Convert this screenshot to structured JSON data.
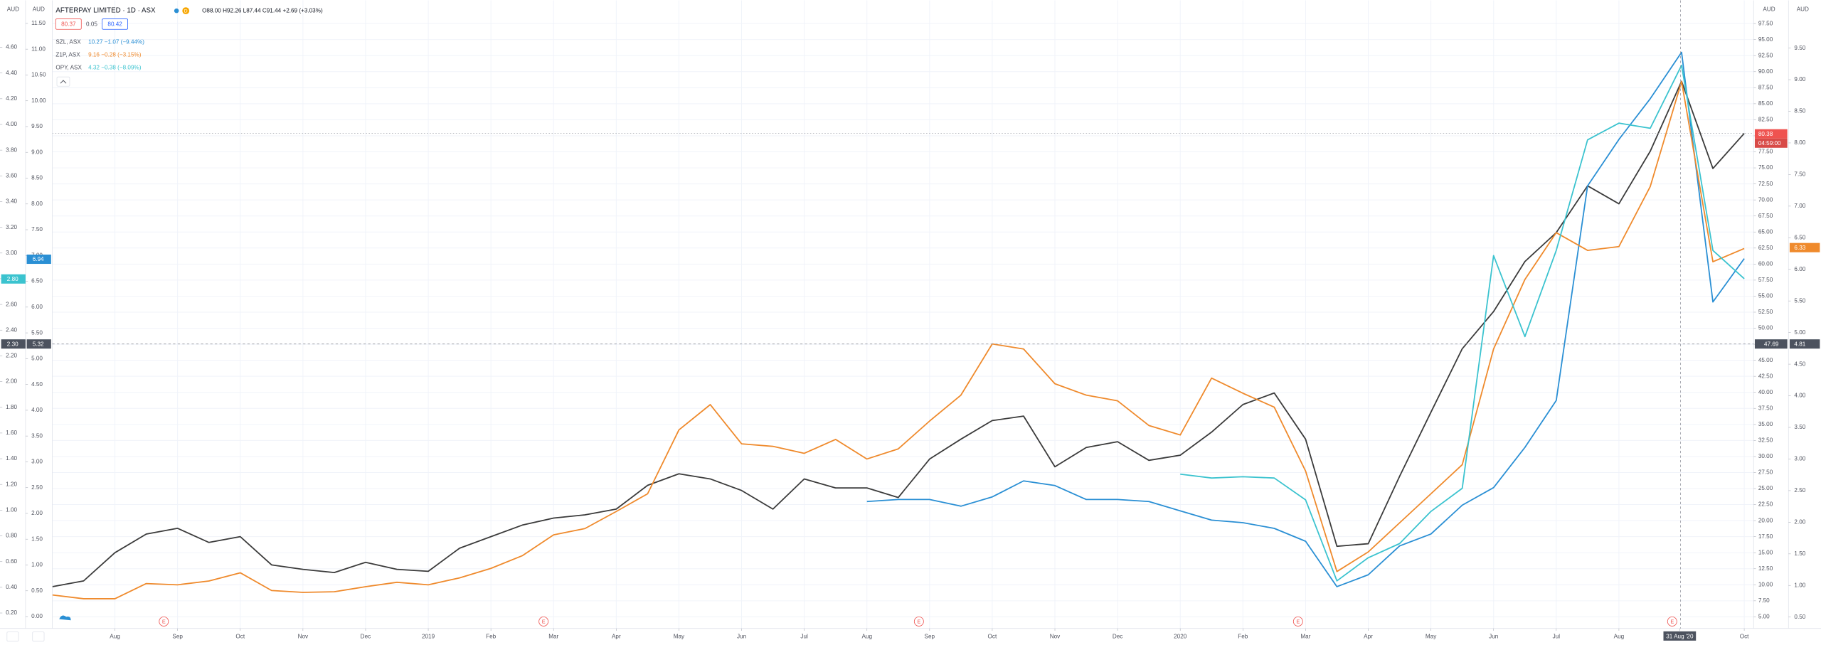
{
  "chart_data": {
    "type": "line",
    "title": "AFTERPAY LIMITED · 1D · ASX",
    "subtitle": "O88.00 H92.26 L87.44 C91.44 +2.69 (+3.03%)",
    "grid": true,
    "xlim": [
      -1,
      26.15
    ],
    "xticks": [
      {
        "value": 0,
        "label": "Aug"
      },
      {
        "value": 1,
        "label": "Sep"
      },
      {
        "value": 2,
        "label": "Oct"
      },
      {
        "value": 3,
        "label": "Nov"
      },
      {
        "value": 4,
        "label": "Dec"
      },
      {
        "value": 5,
        "label": "2019"
      },
      {
        "value": 6,
        "label": "Feb"
      },
      {
        "value": 7,
        "label": "Mar"
      },
      {
        "value": 8,
        "label": "Apr"
      },
      {
        "value": 9,
        "label": "May"
      },
      {
        "value": 10,
        "label": "Jun"
      },
      {
        "value": 11,
        "label": "Jul"
      },
      {
        "value": 12,
        "label": "Aug"
      },
      {
        "value": 13,
        "label": "Sep"
      },
      {
        "value": 14,
        "label": "Oct"
      },
      {
        "value": 15,
        "label": "Nov"
      },
      {
        "value": 16,
        "label": "Dec"
      },
      {
        "value": 17,
        "label": "2020"
      },
      {
        "value": 18,
        "label": "Feb"
      },
      {
        "value": 19,
        "label": "Mar"
      },
      {
        "value": 20,
        "label": "Apr"
      },
      {
        "value": 21,
        "label": "May"
      },
      {
        "value": 22,
        "label": "Jun"
      },
      {
        "value": 23,
        "label": "Jul"
      },
      {
        "value": 24,
        "label": "Aug"
      },
      {
        "value": 24.97,
        "label": "31 Aug '20"
      },
      {
        "value": 26,
        "label": "Oct"
      }
    ],
    "ylim": [
      3.19,
      98.41
    ],
    "yticks": [
      {
        "value": 5,
        "label": "5.00"
      },
      {
        "value": 7.5,
        "label": "7.50"
      },
      {
        "value": 10,
        "label": "10.00"
      },
      {
        "value": 12.5,
        "label": "12.50"
      },
      {
        "value": 15,
        "label": "15.00"
      },
      {
        "value": 17.5,
        "label": "17.50"
      },
      {
        "value": 20,
        "label": "20.00"
      },
      {
        "value": 22.5,
        "label": "22.50"
      },
      {
        "value": 25,
        "label": "25.00"
      },
      {
        "value": 27.5,
        "label": "27.50"
      },
      {
        "value": 30,
        "label": "30.00"
      },
      {
        "value": 32.5,
        "label": "32.50"
      },
      {
        "value": 35,
        "label": "35.00"
      },
      {
        "value": 37.5,
        "label": "37.50"
      },
      {
        "value": 40,
        "label": "40.00"
      },
      {
        "value": 42.5,
        "label": "42.50"
      },
      {
        "value": 45,
        "label": "45.00"
      },
      {
        "value": 47.5,
        "label": "47.50"
      },
      {
        "value": 50,
        "label": "50.00"
      },
      {
        "value": 52.5,
        "label": "52.50"
      },
      {
        "value": 55,
        "label": "55.00"
      },
      {
        "value": 57.5,
        "label": "57.50"
      },
      {
        "value": 60,
        "label": "60.00"
      },
      {
        "value": 62.5,
        "label": "62.50"
      },
      {
        "value": 65,
        "label": "65.00"
      },
      {
        "value": 67.5,
        "label": "67.50"
      },
      {
        "value": 70,
        "label": "70.00"
      },
      {
        "value": 72.5,
        "label": "72.50"
      },
      {
        "value": 75,
        "label": "75.00"
      },
      {
        "value": 77.5,
        "label": "77.50"
      },
      {
        "value": 80,
        "label": "80.00"
      },
      {
        "value": 82.5,
        "label": "82.50"
      },
      {
        "value": 85,
        "label": "85.00"
      },
      {
        "value": 87.5,
        "label": "87.50"
      },
      {
        "value": 90,
        "label": "90.00"
      },
      {
        "value": 92.5,
        "label": "92.50"
      },
      {
        "value": 95,
        "label": "95.00"
      },
      {
        "value": 97.5,
        "label": "97.50"
      }
    ],
    "y2lim": [
      0.32,
      9.98
    ],
    "y2ticks": [
      {
        "value": 0.5,
        "label": "0.50"
      },
      {
        "value": 1,
        "label": "1.00"
      },
      {
        "value": 1.5,
        "label": "1.50"
      },
      {
        "value": 2,
        "label": "2.00"
      },
      {
        "value": 2.5,
        "label": "2.50"
      },
      {
        "value": 3,
        "label": "3.00"
      },
      {
        "value": 3.5,
        "label": "3.50"
      },
      {
        "value": 4,
        "label": "4.00"
      },
      {
        "value": 4.5,
        "label": "4.50"
      },
      {
        "value": 5,
        "label": "5.00"
      },
      {
        "value": 5.5,
        "label": "5.50"
      },
      {
        "value": 6,
        "label": "6.00"
      },
      {
        "value": 6.5,
        "label": "6.50"
      },
      {
        "value": 7,
        "label": "7.00"
      },
      {
        "value": 7.5,
        "label": "7.50"
      },
      {
        "value": 8,
        "label": "8.00"
      },
      {
        "value": 8.5,
        "label": "8.50"
      },
      {
        "value": 9,
        "label": "9.00"
      },
      {
        "value": 9.5,
        "label": "9.50"
      }
    ],
    "y3lim": [
      -0.23,
      11.61
    ],
    "y3ticks": [
      {
        "value": 0,
        "label": "0.00"
      },
      {
        "value": 0.5,
        "label": "0.50"
      },
      {
        "value": 1,
        "label": "1.00"
      },
      {
        "value": 1.5,
        "label": "1.50"
      },
      {
        "value": 2,
        "label": "2.00"
      },
      {
        "value": 2.5,
        "label": "2.50"
      },
      {
        "value": 3,
        "label": "3.00"
      },
      {
        "value": 3.5,
        "label": "3.50"
      },
      {
        "value": 4,
        "label": "4.00"
      },
      {
        "value": 4.5,
        "label": "4.50"
      },
      {
        "value": 5,
        "label": "5.00"
      },
      {
        "value": 5.5,
        "label": "5.50"
      },
      {
        "value": 6,
        "label": "6.00"
      },
      {
        "value": 6.5,
        "label": "6.50"
      },
      {
        "value": 7,
        "label": "7.00"
      },
      {
        "value": 7.5,
        "label": "7.50"
      },
      {
        "value": 8,
        "label": "8.00"
      },
      {
        "value": 8.5,
        "label": "8.50"
      },
      {
        "value": 9,
        "label": "9.00"
      },
      {
        "value": 9.5,
        "label": "9.50"
      },
      {
        "value": 10,
        "label": "10.00"
      },
      {
        "value": 10.5,
        "label": "10.50"
      },
      {
        "value": 11,
        "label": "11.00"
      },
      {
        "value": 11.5,
        "label": "11.50"
      }
    ],
    "y4lim": [
      0.08,
      4.83
    ],
    "y4ticks": [
      {
        "value": 0.2,
        "label": "0.20"
      },
      {
        "value": 0.4,
        "label": "0.40"
      },
      {
        "value": 0.6,
        "label": "0.60"
      },
      {
        "value": 0.8,
        "label": "0.80"
      },
      {
        "value": 1,
        "label": "1.00"
      },
      {
        "value": 1.2,
        "label": "1.20"
      },
      {
        "value": 1.4,
        "label": "1.40"
      },
      {
        "value": 1.6,
        "label": "1.60"
      },
      {
        "value": 1.8,
        "label": "1.80"
      },
      {
        "value": 2,
        "label": "2.00"
      },
      {
        "value": 2.2,
        "label": "2.20"
      },
      {
        "value": 2.4,
        "label": "2.40"
      },
      {
        "value": 2.6,
        "label": "2.60"
      },
      {
        "value": 2.8,
        "label": "2.80"
      },
      {
        "value": 3,
        "label": "3.00"
      },
      {
        "value": 3.2,
        "label": "3.20"
      },
      {
        "value": 3.4,
        "label": "3.40"
      },
      {
        "value": 3.6,
        "label": "3.60"
      },
      {
        "value": 3.8,
        "label": "3.80"
      },
      {
        "value": 4,
        "label": "4.00"
      },
      {
        "value": 4.2,
        "label": "4.20"
      },
      {
        "value": 4.4,
        "label": "4.40"
      },
      {
        "value": 4.6,
        "label": "4.60"
      }
    ],
    "x": [
      -1,
      -0.5,
      0,
      0.5,
      1,
      1.5,
      2,
      2.5,
      3,
      3.5,
      4,
      4.5,
      5,
      5.5,
      6,
      6.5,
      7,
      7.5,
      8,
      8.5,
      9,
      9.5,
      10,
      10.5,
      11,
      11.5,
      12,
      12.5,
      13,
      13.5,
      14,
      14.5,
      15,
      15.5,
      16,
      16.5,
      17,
      17.5,
      18,
      18.5,
      19,
      19.5,
      20,
      20.5,
      21,
      21.5,
      22,
      22.5,
      23,
      23.5,
      24,
      24.5,
      25,
      25.5,
      26
    ],
    "series": [
      {
        "color": "#3b3b3b",
        "axis": "y",
        "values": [
          9.7,
          10.6,
          15.0,
          17.9,
          18.8,
          16.6,
          17.5,
          13.1,
          12.4,
          11.9,
          13.5,
          12.4,
          12.1,
          15.7,
          17.5,
          19.3,
          20.4,
          20.9,
          21.8,
          25.5,
          27.3,
          26.5,
          24.7,
          21.8,
          26.5,
          25.1,
          25.1,
          23.6,
          29.6,
          32.7,
          35.6,
          36.3,
          28.4,
          31.4,
          32.3,
          29.4,
          30.2,
          33.8,
          38.1,
          39.9,
          32.7,
          16.0,
          16.4,
          26.9,
          36.9,
          46.8,
          52.6,
          60.4,
          64.9,
          72.2,
          69.4,
          77.6,
          88.5,
          74.9,
          80.38
        ]
      },
      {
        "name": "SZL, ASX",
        "legend_value": "10.27 −1.07 (−9.44%)",
        "color": "#2a8fd4",
        "axis": "y3",
        "values": [
          null,
          null,
          null,
          null,
          null,
          null,
          null,
          null,
          null,
          null,
          null,
          null,
          null,
          null,
          null,
          null,
          null,
          null,
          null,
          null,
          null,
          null,
          null,
          null,
          null,
          null,
          2.23,
          2.27,
          2.27,
          2.14,
          2.32,
          2.63,
          2.54,
          2.27,
          2.27,
          2.23,
          2.05,
          1.87,
          1.82,
          1.71,
          1.46,
          0.58,
          0.81,
          1.37,
          1.6,
          2.16,
          2.5,
          3.28,
          4.19,
          8.35,
          9.25,
          10.04,
          10.94,
          6.1,
          6.94
        ]
      },
      {
        "name": "Z1P, ASX",
        "legend_value": "9.16 −0.28 (−3.15%)",
        "color": "#ef8a2c",
        "axis": "y2",
        "values": [
          0.85,
          0.79,
          0.79,
          1.03,
          1.01,
          1.07,
          1.2,
          0.92,
          0.89,
          0.9,
          0.98,
          1.05,
          1.01,
          1.12,
          1.27,
          1.47,
          1.8,
          1.9,
          2.17,
          2.45,
          3.46,
          3.86,
          3.24,
          3.2,
          3.09,
          3.31,
          3.0,
          3.16,
          3.6,
          4.01,
          4.82,
          4.74,
          4.19,
          4.01,
          3.92,
          3.53,
          3.38,
          4.28,
          4.04,
          3.82,
          2.81,
          1.22,
          1.53,
          1.99,
          2.45,
          2.91,
          4.74,
          5.84,
          6.58,
          6.3,
          6.36,
          7.31,
          8.97,
          6.12,
          6.33
        ]
      },
      {
        "name": "OPY, ASX",
        "legend_value": "4.32 −0.38 (−8.09%)",
        "color": "#3bc3cf",
        "axis": "y4",
        "values": [
          null,
          null,
          null,
          null,
          null,
          null,
          null,
          null,
          null,
          null,
          null,
          null,
          null,
          null,
          null,
          null,
          null,
          null,
          null,
          null,
          null,
          null,
          null,
          null,
          null,
          null,
          null,
          null,
          null,
          null,
          null,
          null,
          null,
          null,
          null,
          null,
          1.28,
          1.25,
          1.26,
          1.25,
          1.08,
          0.45,
          0.63,
          0.74,
          0.99,
          1.17,
          2.98,
          2.35,
          3.02,
          3.88,
          4.01,
          3.97,
          4.46,
          3.02,
          2.8
        ]
      }
    ],
    "annotations": [
      "E",
      "E",
      "E",
      "E",
      "E"
    ]
  },
  "overlay": {
    "currency": "AUD",
    "interval": "D",
    "header_boxes": [
      "80.37",
      "0.05",
      "80.42"
    ],
    "badges": {
      "apt_last": "80.38",
      "countdown": "04:59:00",
      "z1p_last": "6.33",
      "szl_last": "6.94",
      "opy_last": "2.80",
      "cross_y4": "2.30",
      "cross_y3": "5.32",
      "cross_y": "47.69",
      "cross_y2": "4.81"
    }
  }
}
